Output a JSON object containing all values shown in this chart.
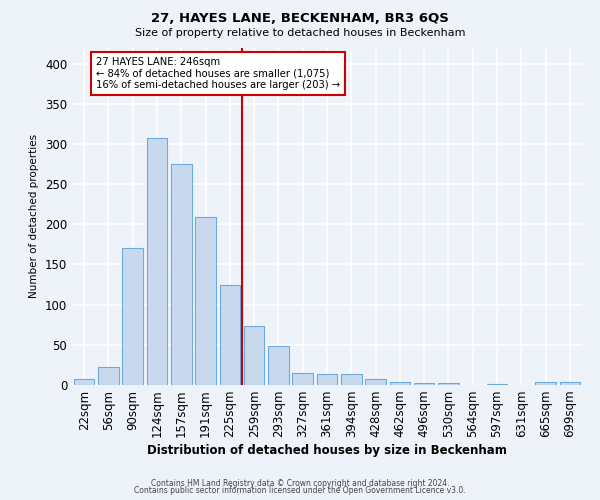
{
  "title": "27, HAYES LANE, BECKENHAM, BR3 6QS",
  "subtitle": "Size of property relative to detached houses in Beckenham",
  "xlabel": "Distribution of detached houses by size in Beckenham",
  "ylabel": "Number of detached properties",
  "categories": [
    "22sqm",
    "56sqm",
    "90sqm",
    "124sqm",
    "157sqm",
    "191sqm",
    "225sqm",
    "259sqm",
    "293sqm",
    "327sqm",
    "361sqm",
    "394sqm",
    "428sqm",
    "462sqm",
    "496sqm",
    "530sqm",
    "564sqm",
    "597sqm",
    "631sqm",
    "665sqm",
    "699sqm"
  ],
  "values": [
    7,
    22,
    170,
    307,
    275,
    209,
    125,
    73,
    49,
    15,
    14,
    14,
    8,
    4,
    3,
    2,
    0,
    1,
    0,
    4,
    4
  ],
  "bar_color": "#c9d9ed",
  "bar_edge_color": "#6aabe0",
  "vline_x_idx": 7,
  "vline_color": "#cc0000",
  "annotation_title": "27 HAYES LANE: 246sqm",
  "annotation_line1": "← 84% of detached houses are smaller (1,075)",
  "annotation_line2": "16% of semi-detached houses are larger (203) →",
  "annotation_box_color": "#ffffff",
  "annotation_box_edge": "#cc0000",
  "footer1": "Contains HM Land Registry data © Crown copyright and database right 2024.",
  "footer2": "Contains public sector information licensed under the Open Government Licence v3.0.",
  "background_color": "#eef2f9",
  "grid_color": "#ffffff",
  "ylim": [
    0,
    420
  ],
  "yticks": [
    0,
    50,
    100,
    150,
    200,
    250,
    300,
    350,
    400
  ]
}
